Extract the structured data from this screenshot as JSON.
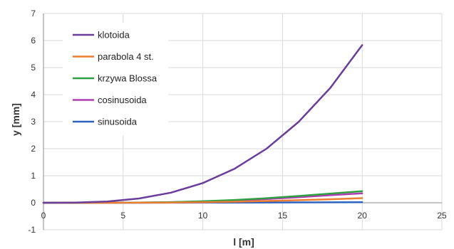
{
  "chart_data": {
    "type": "line",
    "xlabel": "l [m]",
    "ylabel": "y [mm]",
    "xlim": [
      0,
      25
    ],
    "ylim": [
      -1,
      7
    ],
    "x_ticks": [
      0,
      5,
      10,
      15,
      20,
      25
    ],
    "y_ticks": [
      -1,
      0,
      1,
      2,
      3,
      4,
      5,
      6,
      7
    ],
    "grid": true,
    "legend_position": "top-left",
    "x": [
      0,
      2,
      4,
      6,
      8,
      10,
      12,
      14,
      16,
      18,
      20
    ],
    "series": [
      {
        "name": "klotoida",
        "color": "#6a3d9a",
        "values": [
          0,
          0.006,
          0.047,
          0.157,
          0.373,
          0.729,
          1.26,
          2.0,
          2.986,
          4.251,
          5.832
        ]
      },
      {
        "name": "parabola 4 st.",
        "color": "#ed7d31",
        "values": [
          0,
          0.0,
          0.0,
          0.003,
          0.008,
          0.021,
          0.04,
          0.066,
          0.095,
          0.13,
          0.17
        ]
      },
      {
        "name": "krzywa Blossa",
        "color": "#2ea043",
        "values": [
          0,
          0.0,
          0.002,
          0.009,
          0.025,
          0.055,
          0.102,
          0.168,
          0.25,
          0.34,
          0.43
        ]
      },
      {
        "name": "cosinusoida",
        "color": "#b03db0",
        "values": [
          0,
          0.0,
          0.002,
          0.008,
          0.021,
          0.045,
          0.083,
          0.137,
          0.205,
          0.28,
          0.35
        ]
      },
      {
        "name": "sinusoida",
        "color": "#2e62c0",
        "values": [
          0,
          0.0,
          0.0,
          0.001,
          0.002,
          0.004,
          0.007,
          0.01,
          0.013,
          0.016,
          0.018
        ]
      }
    ]
  }
}
